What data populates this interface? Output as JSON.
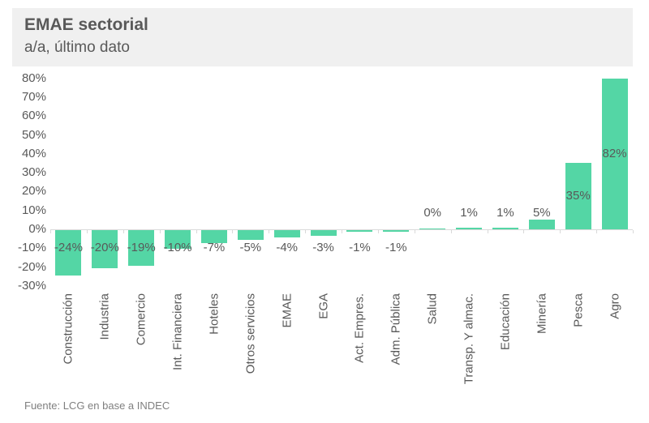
{
  "header": {
    "title": "EMAE sectorial",
    "subtitle": "a/a, último dato"
  },
  "footer": {
    "source": "Fuente: LCG en base a INDEC"
  },
  "colors": {
    "bar": "#54d6a5",
    "axis": "#d9d9d9",
    "text": "#595959",
    "header_band": "#f0f0f0",
    "source_text": "#7f7f7f"
  },
  "chart_data": {
    "type": "bar",
    "title": "EMAE sectorial",
    "subtitle": "a/a, último dato",
    "categories": [
      "Construcción",
      "Industria",
      "Comercio",
      "Int. Financiera",
      "Hoteles",
      "Otros servicios",
      "EMAE",
      "EGA",
      "Act. Empres.",
      "Adm. Pública",
      "Salud",
      "Transp. Y almac.",
      "Educación",
      "Minería",
      "Pesca",
      "Agro"
    ],
    "values": [
      -24,
      -20,
      -19,
      -10,
      -7,
      -5,
      -4,
      -3,
      -1,
      -1,
      0,
      1,
      1,
      5,
      35,
      82
    ],
    "value_labels": [
      "-24%",
      "-20%",
      "-19%",
      "-10%",
      "-7%",
      "-5%",
      "-4%",
      "-3%",
      "-1%",
      "-1%",
      "0%",
      "1%",
      "1%",
      "5%",
      "35%",
      "82%"
    ],
    "xlabel": "",
    "ylabel": "",
    "ylim": [
      -30,
      80
    ],
    "ytick_step": 10,
    "ytick_suffix": "%",
    "grid": false,
    "legend_position": "none",
    "bar_color": "#54d6a5",
    "note": "bars clipped at axis max 80%"
  }
}
